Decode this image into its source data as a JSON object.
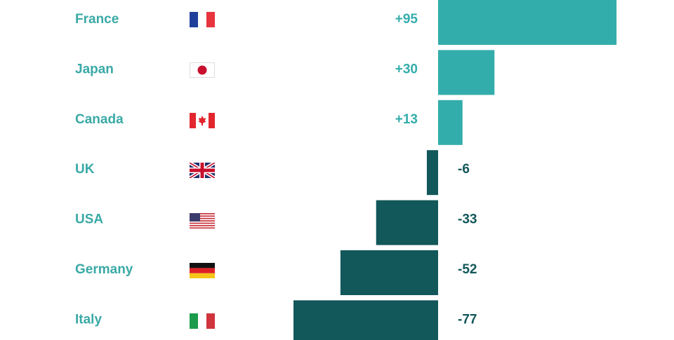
{
  "chart_data": {
    "type": "diverging-bar",
    "categories": [
      "France",
      "Japan",
      "Canada",
      "UK",
      "USA",
      "Germany",
      "Italy"
    ],
    "values": [
      95,
      30,
      13,
      -6,
      -33,
      -52,
      -77
    ],
    "value_labels": [
      "+95",
      "+30",
      "+13",
      "-6",
      "-33",
      "-52",
      "-77"
    ],
    "positive_color": "#33adab",
    "negative_color": "#12575a"
  }
}
